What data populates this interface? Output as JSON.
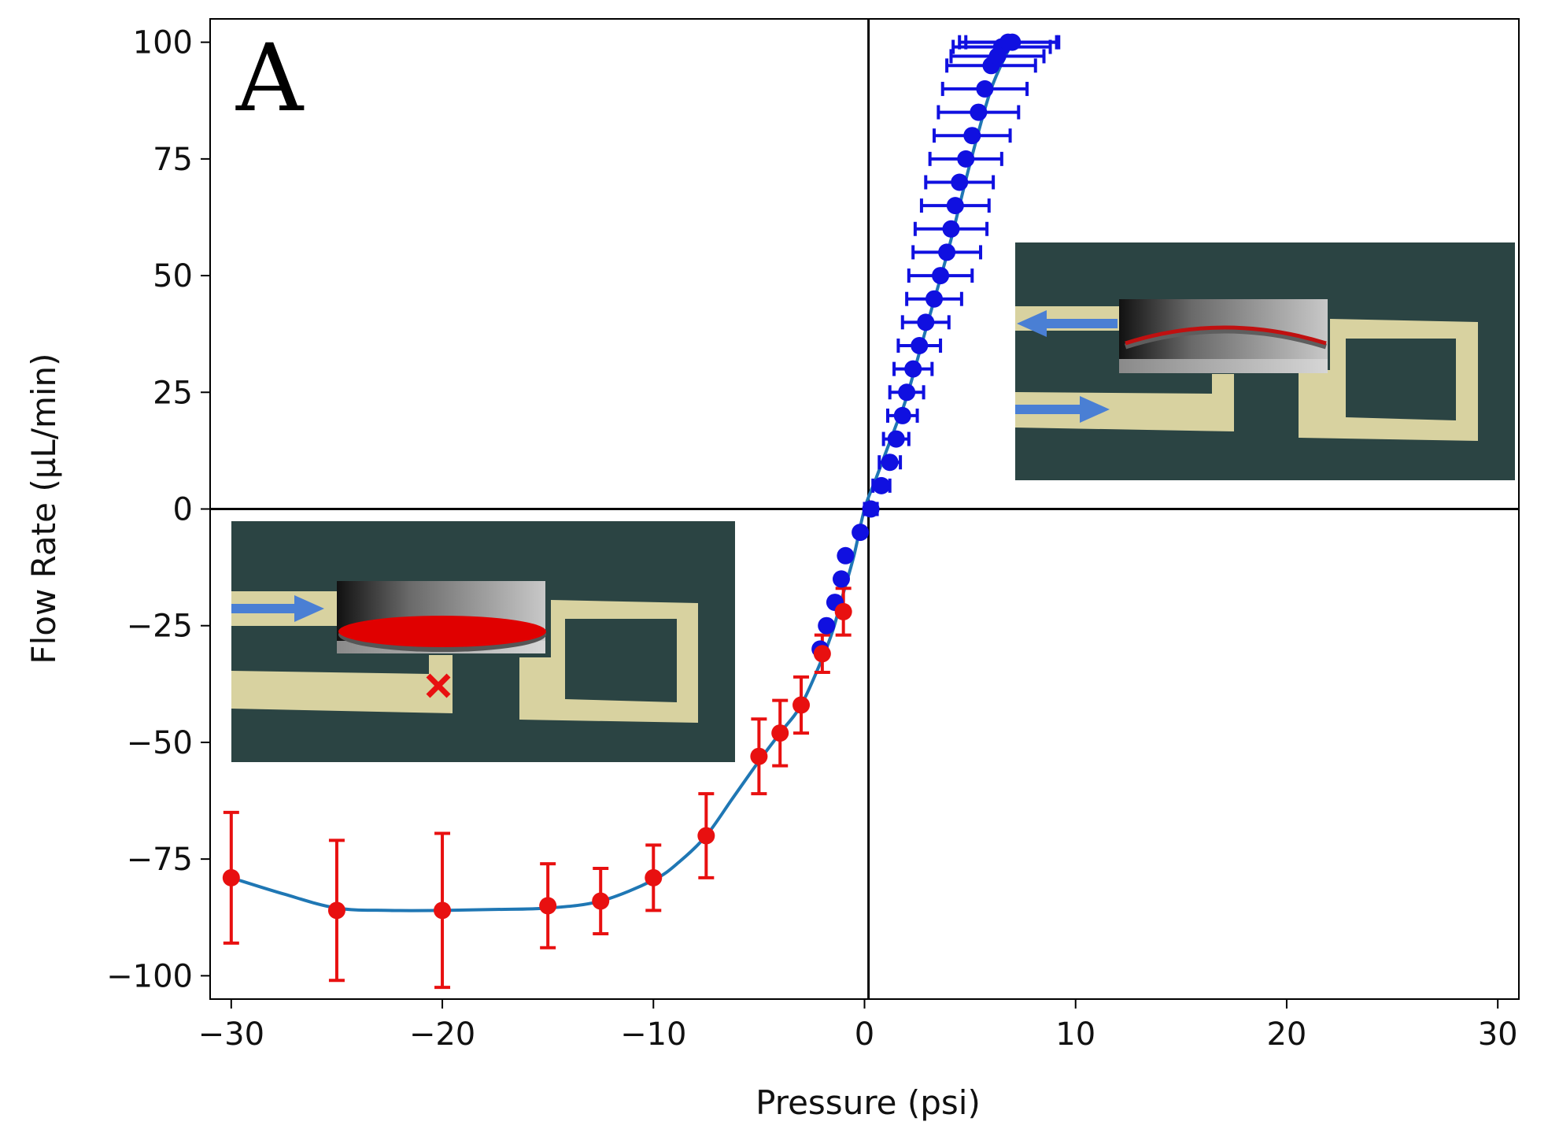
{
  "chart_data": {
    "type": "scatter",
    "panel_label": "A",
    "xlabel": "Pressure (psi)",
    "ylabel": "Flow Rate (µL/min)",
    "xlim": [
      -31,
      31
    ],
    "ylim": [
      -105,
      105
    ],
    "xticks": [
      -30,
      -20,
      -10,
      0,
      10,
      20,
      30
    ],
    "xtick_labels": [
      "−30",
      "−20",
      "−10",
      "0",
      "10",
      "20",
      "30"
    ],
    "yticks": [
      100,
      75,
      50,
      25,
      0,
      -25,
      -50,
      -75,
      -100
    ],
    "ytick_labels": [
      "100",
      "75",
      "50",
      "25",
      "0",
      "−25",
      "−50",
      "−75",
      "−100"
    ],
    "grid": false,
    "zero_lines": true,
    "colors": {
      "forward": "#1010e0",
      "reverse": "#e81010",
      "fit": "#1f77b4",
      "inset_bg": "#2b4443",
      "channel": "#d8d2a0",
      "arrow": "#4a7fd4"
    },
    "series": [
      {
        "name": "forward",
        "color": "#1010e0",
        "x": [
          0.3,
          0.8,
          1.2,
          1.5,
          1.8,
          2.0,
          2.3,
          2.6,
          2.9,
          3.3,
          3.6,
          3.9,
          4.1,
          4.3,
          4.5,
          4.8,
          5.1,
          5.4,
          5.7,
          6.0,
          6.3,
          6.5,
          6.8,
          7.0
        ],
        "y": [
          0,
          5,
          10,
          15,
          20,
          25,
          30,
          35,
          40,
          45,
          50,
          55,
          60,
          65,
          70,
          75,
          80,
          85,
          90,
          95,
          97,
          99,
          100,
          100
        ],
        "xerr": [
          0.3,
          0.4,
          0.5,
          0.6,
          0.7,
          0.8,
          0.9,
          1.0,
          1.1,
          1.3,
          1.5,
          1.6,
          1.7,
          1.6,
          1.6,
          1.7,
          1.8,
          1.9,
          2.0,
          2.1,
          2.2,
          2.3,
          2.3,
          2.2
        ],
        "yerr": []
      },
      {
        "name": "forward-negative",
        "color": "#1010e0",
        "x": [
          -0.2,
          -0.9,
          -1.1,
          -1.4,
          -1.8,
          -2.1
        ],
        "y": [
          -5,
          -10,
          -15,
          -20,
          -25,
          -30
        ],
        "xerr": [],
        "yerr": []
      },
      {
        "name": "reverse",
        "color": "#e81010",
        "x": [
          -30,
          -25,
          -20,
          -15,
          -12.5,
          -10,
          -7.5,
          -5,
          -4,
          -3,
          -2,
          -1
        ],
        "y": [
          -79,
          -86,
          -86,
          -85,
          -84,
          -79,
          -70,
          -53,
          -48,
          -42,
          -31,
          -22
        ],
        "xerr": [],
        "yerr": [
          14,
          15,
          16.5,
          9,
          7,
          7,
          9,
          8,
          7,
          6,
          4,
          5
        ]
      }
    ],
    "fit_curve": {
      "name": "fit",
      "x": [
        -30,
        -27.5,
        -25,
        -22.5,
        -20,
        -17.5,
        -15,
        -12.5,
        -10,
        -8.75,
        -7.5,
        -6.25,
        -5,
        -4,
        -3,
        -2,
        -1.5,
        -1,
        -0.5,
        0,
        0.5,
        1,
        1.5,
        2,
        3,
        4,
        5,
        6,
        7
      ],
      "y": [
        -79,
        -82.5,
        -85.5,
        -86,
        -86,
        -85.8,
        -85.5,
        -84,
        -79.5,
        -75.5,
        -70,
        -62,
        -54,
        -48,
        -42,
        -32,
        -26,
        -18,
        -10,
        0,
        6,
        12,
        18,
        24,
        40,
        56,
        74,
        90,
        100
      ]
    }
  }
}
